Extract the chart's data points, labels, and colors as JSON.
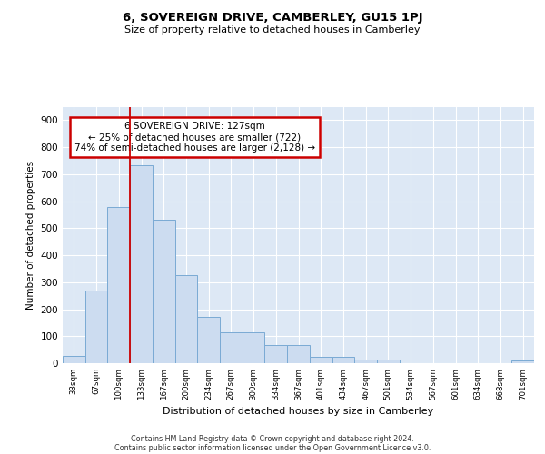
{
  "title": "6, SOVEREIGN DRIVE, CAMBERLEY, GU15 1PJ",
  "subtitle": "Size of property relative to detached houses in Camberley",
  "xlabel": "Distribution of detached houses by size in Camberley",
  "ylabel": "Number of detached properties",
  "categories": [
    "33sqm",
    "67sqm",
    "100sqm",
    "133sqm",
    "167sqm",
    "200sqm",
    "234sqm",
    "267sqm",
    "300sqm",
    "334sqm",
    "367sqm",
    "401sqm",
    "434sqm",
    "467sqm",
    "501sqm",
    "534sqm",
    "567sqm",
    "601sqm",
    "634sqm",
    "668sqm",
    "701sqm"
  ],
  "values": [
    27,
    270,
    578,
    733,
    530,
    327,
    170,
    115,
    115,
    67,
    67,
    22,
    22,
    12,
    12,
    0,
    0,
    0,
    0,
    0,
    10
  ],
  "bar_color": "#ccdcf0",
  "bar_edge_color": "#7aaad4",
  "fig_bg_color": "#ffffff",
  "plot_bg_color": "#dde8f5",
  "grid_color": "#ffffff",
  "vline_color": "#cc0000",
  "vline_x_index": 3,
  "annotation_line1": "6 SOVEREIGN DRIVE: 127sqm",
  "annotation_line2": "← 25% of detached houses are smaller (722)",
  "annotation_line3": "74% of semi-detached houses are larger (2,128) →",
  "annotation_box_color": "#cc0000",
  "ylim": [
    0,
    950
  ],
  "yticks": [
    0,
    100,
    200,
    300,
    400,
    500,
    600,
    700,
    800,
    900
  ],
  "footer_line1": "Contains HM Land Registry data © Crown copyright and database right 2024.",
  "footer_line2": "Contains public sector information licensed under the Open Government Licence v3.0."
}
